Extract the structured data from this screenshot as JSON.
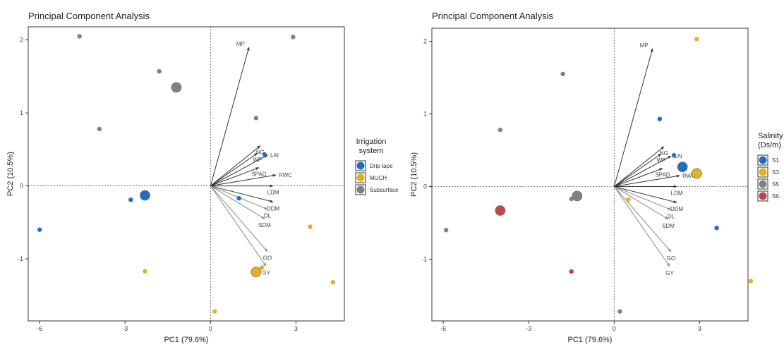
{
  "chart_data": [
    {
      "type": "scatter",
      "title": "Principal Component Analysis",
      "xlabel": "PC1 (79.6%)",
      "ylabel": "PC2 (10.5%)",
      "xlim": [
        -6.4,
        4.7
      ],
      "ylim": [
        -1.85,
        2.18
      ],
      "xticks": [
        -6,
        -3,
        0,
        3
      ],
      "yticks": [
        -1,
        0,
        1,
        2
      ],
      "grid": false,
      "legend_position": "right",
      "legend_title": "Irrigation system",
      "legend": [
        {
          "label": "Drip tape",
          "color": "#1f6fbf"
        },
        {
          "label": "MUCH",
          "color": "#e2b21d"
        },
        {
          "label": "Subsurface",
          "color": "#808080"
        }
      ],
      "points": [
        {
          "x": -4.6,
          "y": 2.05,
          "group": "Subsurface"
        },
        {
          "x": -1.8,
          "y": 1.57,
          "group": "Subsurface"
        },
        {
          "x": -1.2,
          "y": 1.35,
          "group": "Subsurface",
          "centroid": true
        },
        {
          "x": -3.9,
          "y": 0.78,
          "group": "Subsurface"
        },
        {
          "x": 1.6,
          "y": 0.93,
          "group": "Subsurface"
        },
        {
          "x": 2.9,
          "y": 2.04,
          "group": "Subsurface"
        },
        {
          "x": -2.3,
          "y": -0.13,
          "group": "Drip tape",
          "centroid": true
        },
        {
          "x": -2.8,
          "y": -0.19,
          "group": "Drip tape"
        },
        {
          "x": -6.0,
          "y": -0.6,
          "group": "Drip tape"
        },
        {
          "x": 1.0,
          "y": -0.17,
          "group": "Drip tape"
        },
        {
          "x": 1.9,
          "y": 0.43,
          "group": "Drip tape"
        },
        {
          "x": -2.3,
          "y": -1.17,
          "group": "MUCH"
        },
        {
          "x": 1.6,
          "y": -1.18,
          "group": "MUCH",
          "centroid": true
        },
        {
          "x": 1.8,
          "y": -1.12,
          "group": "MUCH"
        },
        {
          "x": 3.5,
          "y": -0.56,
          "group": "MUCH"
        },
        {
          "x": 4.3,
          "y": -1.32,
          "group": "MUCH"
        },
        {
          "x": 0.15,
          "y": -1.72,
          "group": "MUCH"
        }
      ],
      "loadings": [
        {
          "label": "MP",
          "x": 1.35,
          "y": 1.9
        },
        {
          "label": "NG",
          "x": 1.75,
          "y": 0.55
        },
        {
          "label": "WP",
          "x": 1.65,
          "y": 0.45
        },
        {
          "label": "LAI",
          "x": 2.0,
          "y": 0.42
        },
        {
          "label": "SPAD",
          "x": 1.7,
          "y": 0.25
        },
        {
          "label": "RWC",
          "x": 2.3,
          "y": 0.15
        },
        {
          "label": "LDM",
          "x": 2.2,
          "y": 0.0
        },
        {
          "label": "DDM",
          "x": 2.2,
          "y": -0.22
        },
        {
          "label": "DL",
          "x": 2.0,
          "y": -0.32
        },
        {
          "label": "SDM",
          "x": 1.9,
          "y": -0.45
        },
        {
          "label": "GO",
          "x": 2.0,
          "y": -0.9
        },
        {
          "label": "GY",
          "x": 1.95,
          "y": -1.1
        }
      ]
    },
    {
      "type": "scatter",
      "title": "Principal Component Analysis",
      "xlabel": "PC1 (79.6%)",
      "ylabel": "PC2 (10.5%)",
      "xlim": [
        -6.4,
        4.7
      ],
      "ylim": [
        -1.85,
        2.18
      ],
      "xticks": [
        -6,
        -3,
        0,
        3
      ],
      "yticks": [
        -1,
        0,
        1,
        2
      ],
      "grid": false,
      "legend_position": "right",
      "legend_title": "Salinity (Ds/m)",
      "legend": [
        {
          "label": "S1.",
          "color": "#1f6fbf"
        },
        {
          "label": "S3.",
          "color": "#e2b21d"
        },
        {
          "label": "S5",
          "color": "#808080"
        },
        {
          "label": "S6.",
          "color": "#c0444c"
        }
      ],
      "points": [
        {
          "x": -1.8,
          "y": 1.55,
          "group": "S5"
        },
        {
          "x": -4.0,
          "y": 0.78,
          "group": "S5"
        },
        {
          "x": -1.5,
          "y": -0.17,
          "group": "S5"
        },
        {
          "x": -1.3,
          "y": -0.13,
          "group": "S5",
          "centroid": true
        },
        {
          "x": 0.2,
          "y": -1.72,
          "group": "S5"
        },
        {
          "x": -5.9,
          "y": -0.6,
          "group": "S5"
        },
        {
          "x": -4.0,
          "y": -0.33,
          "group": "S6.",
          "centroid": true
        },
        {
          "x": -1.5,
          "y": -1.17,
          "group": "S6."
        },
        {
          "x": 1.6,
          "y": 0.93,
          "group": "S1."
        },
        {
          "x": 2.4,
          "y": 0.27,
          "group": "S1.",
          "centroid": true
        },
        {
          "x": 3.6,
          "y": -0.57,
          "group": "S1."
        },
        {
          "x": 2.1,
          "y": 0.43,
          "group": "S1."
        },
        {
          "x": 2.9,
          "y": 0.18,
          "group": "S3.",
          "centroid": true
        },
        {
          "x": 2.9,
          "y": 2.03,
          "group": "S3."
        },
        {
          "x": 4.8,
          "y": -1.3,
          "group": "S3."
        },
        {
          "x": 0.5,
          "y": -0.18,
          "group": "S3."
        }
      ],
      "loadings": [
        {
          "label": "MP",
          "x": 1.35,
          "y": 1.9
        },
        {
          "label": "NG",
          "x": 1.75,
          "y": 0.55
        },
        {
          "label": "WP",
          "x": 1.65,
          "y": 0.45
        },
        {
          "label": "LAI",
          "x": 2.0,
          "y": 0.42
        },
        {
          "label": "SPAD",
          "x": 1.7,
          "y": 0.25
        },
        {
          "label": "RWC",
          "x": 2.3,
          "y": 0.15
        },
        {
          "label": "LDM",
          "x": 2.2,
          "y": 0.0
        },
        {
          "label": "DDM",
          "x": 2.2,
          "y": -0.22
        },
        {
          "label": "DL",
          "x": 2.0,
          "y": -0.32
        },
        {
          "label": "SDM",
          "x": 1.9,
          "y": -0.45
        },
        {
          "label": "GO",
          "x": 2.0,
          "y": -0.9
        },
        {
          "label": "GY",
          "x": 1.95,
          "y": -1.1
        }
      ]
    }
  ]
}
